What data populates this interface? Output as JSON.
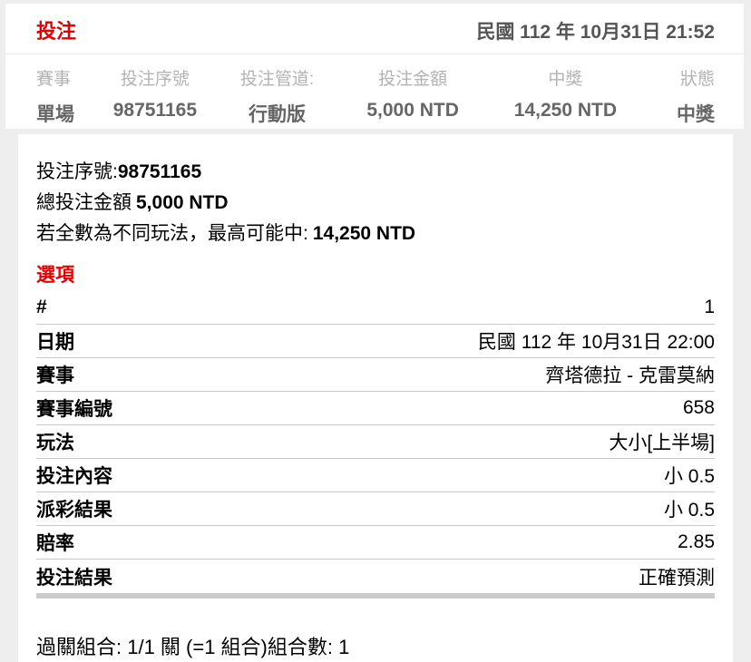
{
  "colors": {
    "accent_red": "#e60000",
    "page_background": "#eeeeee",
    "muted_header_gray": "#b3b3b3",
    "summary_value_gray": "#666666",
    "divider_gray": "#c9c9c9"
  },
  "header": {
    "title": "投注",
    "datetime": "民國 112 年 10月31日 21:52"
  },
  "summary": {
    "columns": [
      {
        "header": "賽事",
        "value": "單場"
      },
      {
        "header": "投注序號",
        "value": "98751165"
      },
      {
        "header": "投注管道:",
        "value": "行動版"
      },
      {
        "header": "投注金額",
        "value": "5,000 NTD"
      },
      {
        "header": "中獎",
        "value": "14,250 NTD"
      },
      {
        "header": "狀態",
        "value": "中獎"
      }
    ]
  },
  "detail": {
    "serial_label": "投注序號:",
    "serial_value": "98751165",
    "total_label": "總投注金額",
    "total_value": "5,000 NTD",
    "max_win_label": "若全數為不同玩法，最高可能中:",
    "max_win_value": "14,250 NTD",
    "options_title": "選項",
    "rows": [
      {
        "label": "#",
        "value": "1"
      },
      {
        "label": "日期",
        "value": "民國 112 年 10月31日 22:00"
      },
      {
        "label": "賽事",
        "value": "齊塔德拉 - 克雷莫納"
      },
      {
        "label": "賽事編號",
        "value": "658"
      },
      {
        "label": "玩法",
        "value": "大小[上半場]"
      },
      {
        "label": "投注內容",
        "value": "小 0.5"
      },
      {
        "label": "派彩結果",
        "value": "小 0.5"
      },
      {
        "label": "賠率",
        "value": "2.85"
      },
      {
        "label": "投注結果",
        "value": "正確預測"
      }
    ],
    "parlay_footer": "過關組合: 1/1 關 (=1 組合)組合數: 1"
  }
}
